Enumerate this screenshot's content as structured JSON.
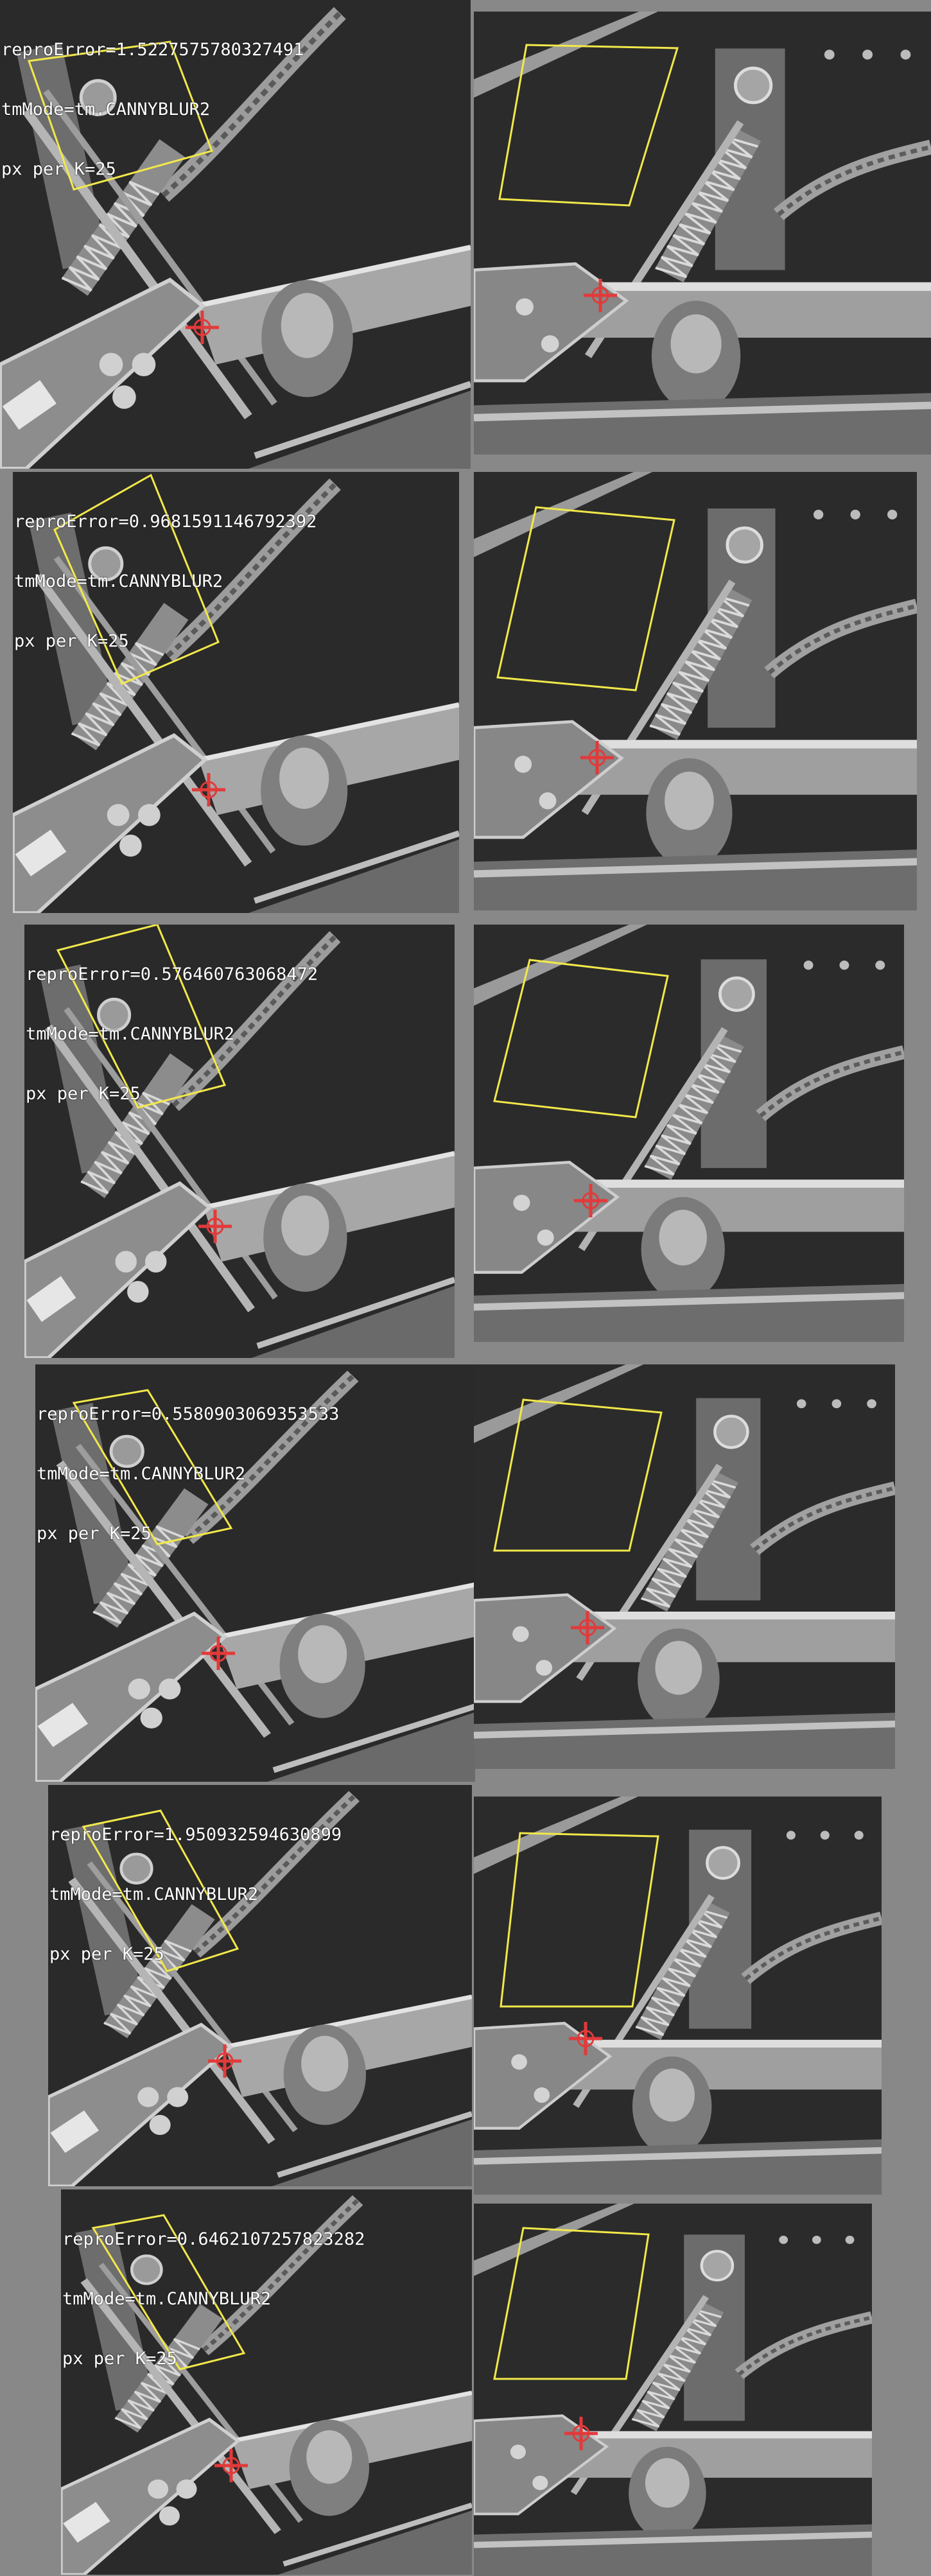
{
  "colors": {
    "background": "#888888",
    "roi": "#f2e84a",
    "marker": "#e23a3a",
    "text": "#ffffff"
  },
  "panels": [
    {
      "repro_error": "reproError=1.5227575780327491",
      "tm_mode": "tmMode=tm.CANNYBLUR2",
      "px_per_k": "px per K=25"
    },
    {
      "repro_error": "reproError=0.9681591146792392",
      "tm_mode": "tmMode=tm.CANNYBLUR2",
      "px_per_k": "px per K=25"
    },
    {
      "repro_error": "reproError=0.576460763068472",
      "tm_mode": "tmMode=tm.CANNYBLUR2",
      "px_per_k": "px per K=25"
    },
    {
      "repro_error": "reproError=0.5580903069353533",
      "tm_mode": "tmMode=tm.CANNYBLUR2",
      "px_per_k": "px per K=25"
    },
    {
      "repro_error": "reproError=1.950932594630899",
      "tm_mode": "tmMode=tm.CANNYBLUR2",
      "px_per_k": "px per K=25"
    },
    {
      "repro_error": "reproError=0.6462107257823282",
      "tm_mode": "tmMode=tm.CANNYBLUR2",
      "px_per_k": "px per K=25"
    }
  ]
}
